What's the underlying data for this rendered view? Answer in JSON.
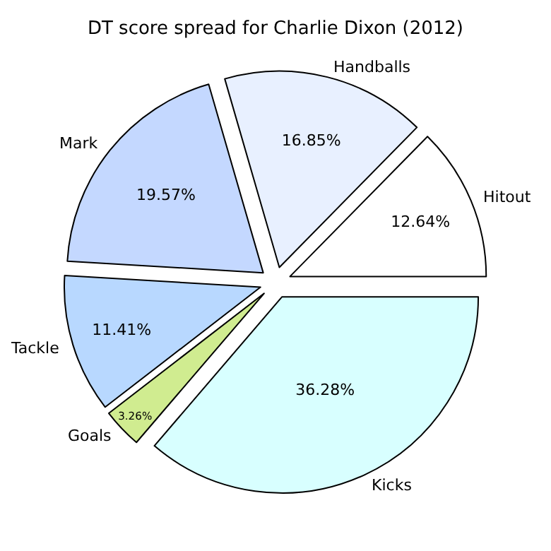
{
  "chart_data": {
    "type": "pie",
    "title": "DT score spread for Charlie Dixon (2012)",
    "categories": [
      "Hitout",
      "Handballs",
      "Mark",
      "Tackle",
      "Goals",
      "Kicks"
    ],
    "values": [
      12.64,
      16.85,
      19.57,
      11.41,
      3.26,
      36.28
    ],
    "value_labels": [
      "12.64%",
      "16.85%",
      "19.57%",
      "11.41%",
      "3.26%",
      "36.28%"
    ],
    "colors": [
      "#ffffff",
      "#e8f0ff",
      "#c4d8ff",
      "#b8d8ff",
      "#d0ec90",
      "#d8ffff"
    ]
  }
}
